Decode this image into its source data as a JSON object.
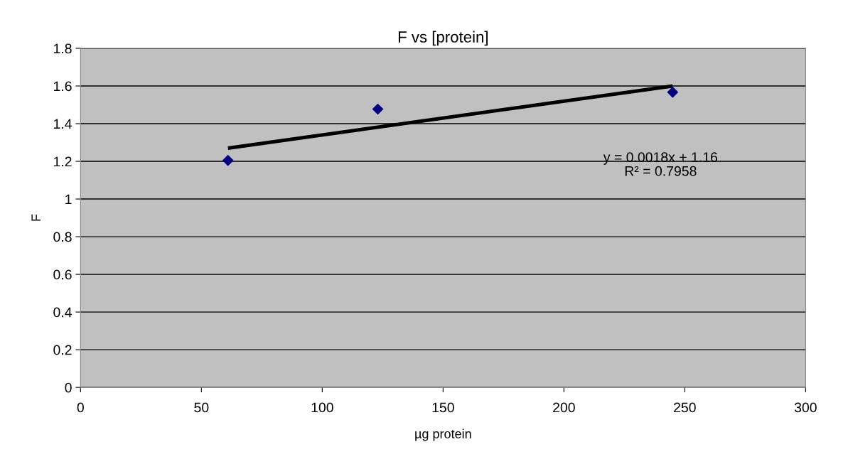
{
  "chart_data": {
    "type": "scatter",
    "title": "F vs [protein]",
    "xlabel": "µg protein",
    "ylabel": "F",
    "x": [
      61,
      123,
      245
    ],
    "series": [
      {
        "color": "#000080",
        "values": [
          1.205,
          1.477,
          1.567
        ],
        "marker": "diamond"
      },
      {
        "type": "line",
        "color": "#000000",
        "x": [
          61,
          245
        ],
        "values": [
          1.27,
          1.6
        ],
        "marker": "none"
      }
    ],
    "annotations": [
      "y = 0.0018x + 1.16\nR² = 0.7958"
    ],
    "xlim": [
      0,
      300
    ],
    "xticks": [
      0,
      50,
      100,
      150,
      200,
      250,
      300
    ],
    "ylim": [
      0,
      1.8
    ],
    "yticks": [
      0,
      {
        "value": 0.2,
        "label": "0.2"
      },
      {
        "value": 0.4,
        "label": "0.4"
      },
      {
        "value": 0.6,
        "label": "0.6"
      },
      {
        "value": 0.8,
        "label": "0.8"
      },
      1,
      {
        "value": 1.2,
        "label": "1.2"
      },
      {
        "value": 1.4,
        "label": "1.4"
      },
      {
        "value": 1.6,
        "label": "1.6"
      },
      {
        "value": 1.8,
        "label": "1.8"
      }
    ],
    "grid": "y",
    "legend": false
  }
}
